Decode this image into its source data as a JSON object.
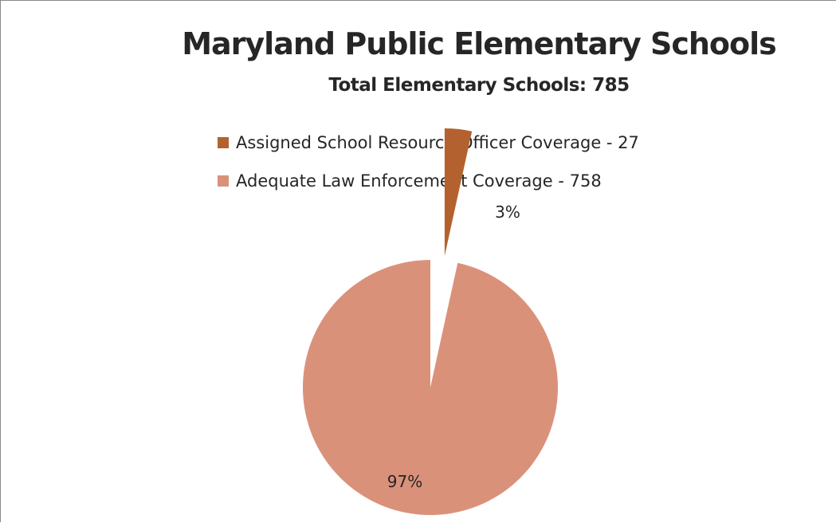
{
  "chart_data": {
    "type": "pie",
    "title": "Maryland Public Elementary Schools",
    "subtitle": "Total Elementary Schools: 785",
    "slices": [
      {
        "legend": "Assigned School Resource Officer Coverage - 27",
        "value": 27,
        "percent_label": "3%",
        "color": "#b3622f",
        "exploded": true
      },
      {
        "legend": "Adequate Law Enforcement Coverage - 758",
        "value": 758,
        "percent_label": "97%",
        "color": "#da917a",
        "exploded": false
      }
    ],
    "legend_position": "top"
  }
}
